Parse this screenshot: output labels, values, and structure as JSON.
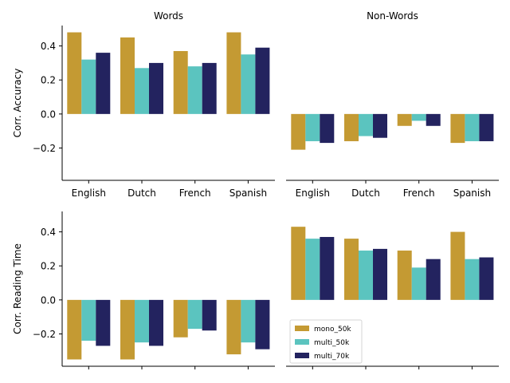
{
  "chart_data": {
    "type": "bar",
    "series_styles": [
      {
        "name": "mono_50k",
        "color": "#C49A33"
      },
      {
        "name": "multi_50k",
        "color": "#5BC4BF"
      },
      {
        "name": "multi_70k",
        "color": "#23235F"
      }
    ],
    "legend_placement": "lower-left of bottom-right panel",
    "grid": false,
    "panels": [
      {
        "title": "Words",
        "ylabel": "Corr. Accuracy",
        "ylim": [
          -0.39,
          0.52
        ],
        "yticks": [
          "0.4",
          "0.2",
          "0.0",
          "−0.2"
        ],
        "ytick_values": [
          0.4,
          0.2,
          0.0,
          -0.2
        ],
        "categories": [
          "English",
          "Dutch",
          "French",
          "Spanish"
        ],
        "show_xticklabels": true,
        "show_left_spine": true,
        "series": [
          {
            "name": "mono_50k",
            "values": [
              0.48,
              0.45,
              0.37,
              0.48
            ]
          },
          {
            "name": "multi_50k",
            "values": [
              0.32,
              0.27,
              0.28,
              0.35
            ]
          },
          {
            "name": "multi_70k",
            "values": [
              0.36,
              0.3,
              0.3,
              0.39
            ]
          }
        ]
      },
      {
        "title": "Non-Words",
        "ylabel": "",
        "ylim": [
          -0.39,
          0.52
        ],
        "yticks": [],
        "ytick_values": [],
        "categories": [
          "English",
          "Dutch",
          "French",
          "Spanish"
        ],
        "show_xticklabels": true,
        "show_left_spine": false,
        "series": [
          {
            "name": "mono_50k",
            "values": [
              -0.21,
              -0.16,
              -0.07,
              -0.17
            ]
          },
          {
            "name": "multi_50k",
            "values": [
              -0.16,
              -0.13,
              -0.04,
              -0.16
            ]
          },
          {
            "name": "multi_70k",
            "values": [
              -0.17,
              -0.14,
              -0.07,
              -0.16
            ]
          }
        ]
      },
      {
        "title": "",
        "ylabel": "Corr. Reading Time",
        "ylim": [
          -0.39,
          0.52
        ],
        "yticks": [
          "0.4",
          "0.2",
          "0.0",
          "−0.2"
        ],
        "ytick_values": [
          0.4,
          0.2,
          0.0,
          -0.2
        ],
        "categories": [
          "English",
          "Dutch",
          "French",
          "Spanish"
        ],
        "show_xticklabels": false,
        "show_left_spine": true,
        "series": [
          {
            "name": "mono_50k",
            "values": [
              -0.35,
              -0.35,
              -0.22,
              -0.32
            ]
          },
          {
            "name": "multi_50k",
            "values": [
              -0.24,
              -0.25,
              -0.17,
              -0.25
            ]
          },
          {
            "name": "multi_70k",
            "values": [
              -0.27,
              -0.27,
              -0.18,
              -0.29
            ]
          }
        ]
      },
      {
        "title": "",
        "ylabel": "",
        "ylim": [
          -0.39,
          0.52
        ],
        "yticks": [],
        "ytick_values": [],
        "categories": [
          "English",
          "Dutch",
          "French",
          "Spanish"
        ],
        "show_xticklabels": false,
        "show_left_spine": false,
        "show_legend": true,
        "series": [
          {
            "name": "mono_50k",
            "values": [
              0.43,
              0.36,
              0.29,
              0.4
            ]
          },
          {
            "name": "multi_50k",
            "values": [
              0.36,
              0.29,
              0.19,
              0.24
            ]
          },
          {
            "name": "multi_70k",
            "values": [
              0.37,
              0.3,
              0.24,
              0.25
            ]
          }
        ]
      }
    ]
  }
}
